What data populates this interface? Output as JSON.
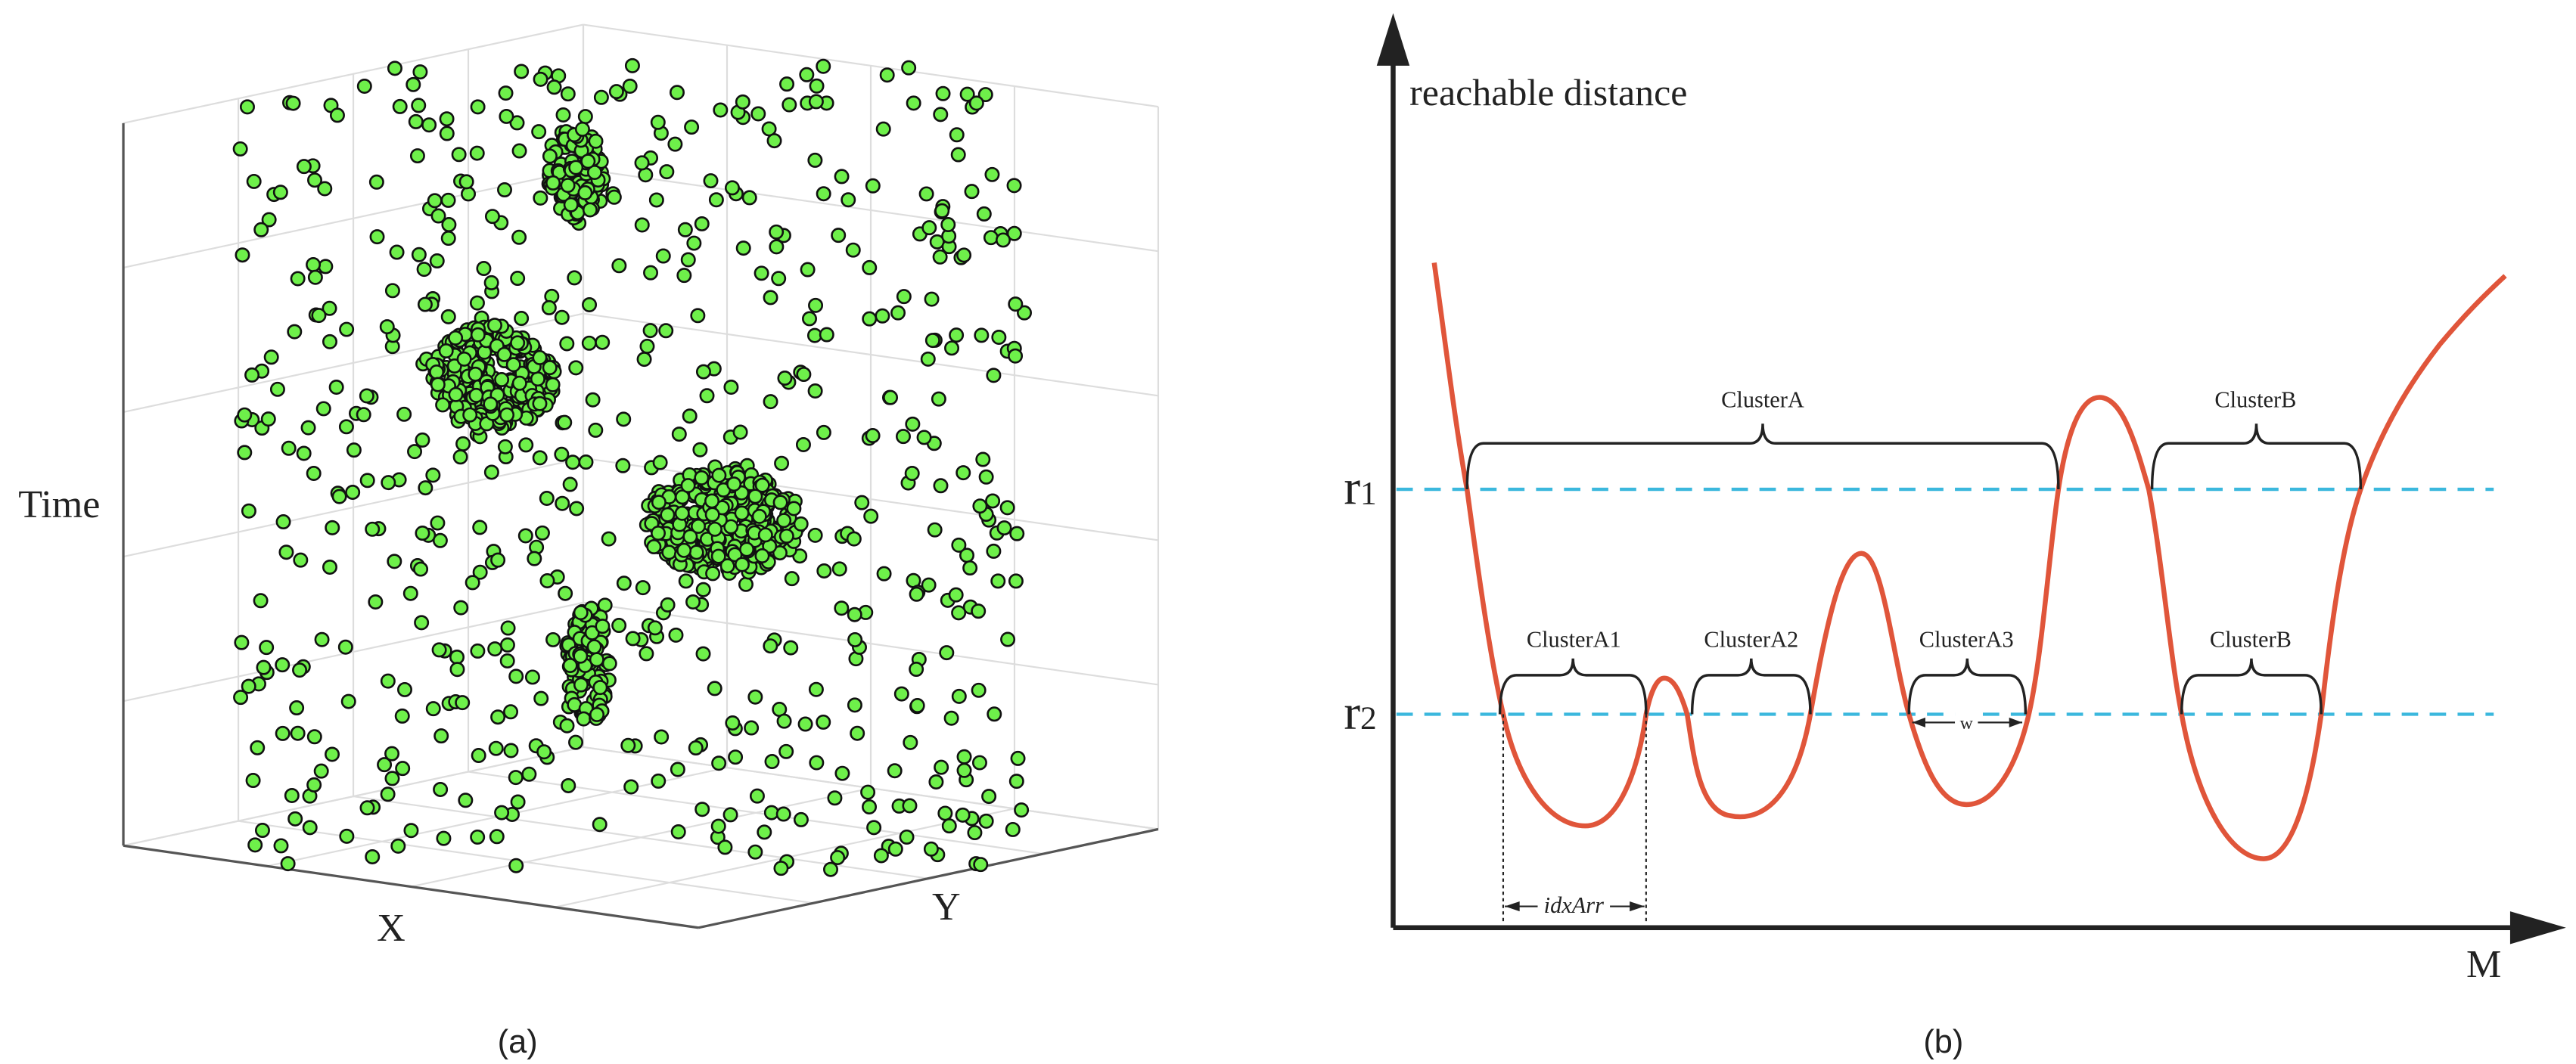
{
  "panel_a": {
    "axis_labels": {
      "z": "Time",
      "x": "X",
      "y": "Y"
    },
    "caption": "(a)"
  },
  "panel_b": {
    "y_axis_label": "reachable distance",
    "x_axis_label": "M",
    "thresholds": [
      {
        "label": "r",
        "subscript": "1"
      },
      {
        "label": "r",
        "subscript": "2"
      }
    ],
    "clusters_r1": [
      "ClusterA",
      "ClusterB"
    ],
    "clusters_r2": [
      "ClusterA1",
      "ClusterA2",
      "ClusterA3",
      "ClusterB"
    ],
    "width_label": "w",
    "index_label": "idxArr",
    "caption": "(b)"
  }
}
